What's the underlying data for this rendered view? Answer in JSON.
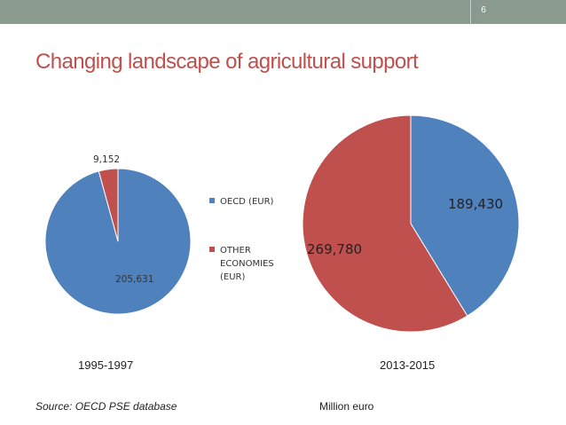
{
  "slide": {
    "page_number": "6",
    "title": "Changing landscape of agricultural support",
    "source": "Source:  OECD PSE database",
    "unit": "Million euro"
  },
  "colors": {
    "topbar": "#8a9a8e",
    "title": "#c0504d",
    "oecd": "#4f81bd",
    "other": "#c0504d"
  },
  "chart_data": [
    {
      "type": "pie",
      "caption": "1995-1997",
      "series": [
        {
          "name": "OECD (EUR)",
          "value": 205631,
          "label": "205,631"
        },
        {
          "name": "OTHER ECONOMIES (EUR)",
          "value": 9152,
          "label": "9,152"
        }
      ],
      "legend": {
        "placement": "right",
        "entries": [
          {
            "text": "OECD (EUR)",
            "lines": [
              "OECD (EUR)"
            ]
          },
          {
            "text": "OTHER ECONOMIES (EUR)",
            "lines": [
              "OTHER",
              "ECONOMIES",
              "(EUR)"
            ]
          }
        ]
      }
    },
    {
      "type": "pie",
      "caption": "2013-2015",
      "series": [
        {
          "name": "OECD (EUR)",
          "value": 189430,
          "label": "189,430"
        },
        {
          "name": "OTHER ECONOMIES (EUR)",
          "value": 269780,
          "label": "269,780"
        }
      ]
    }
  ]
}
